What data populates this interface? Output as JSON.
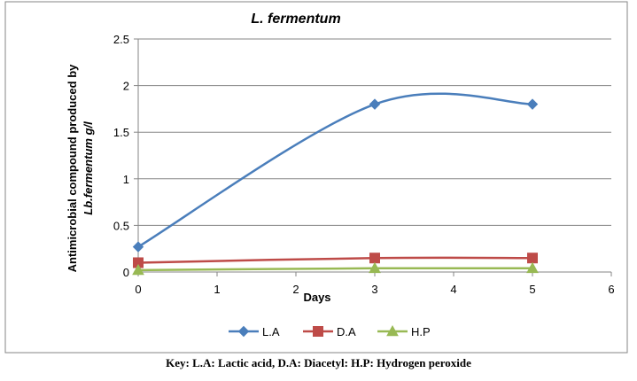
{
  "chart_data": {
    "type": "line",
    "title": "L. fermentum",
    "xlabel": "Days",
    "ylabel_line1": "Antimicrobial compound produced by",
    "ylabel_line2": "Lb.fermentum g/l",
    "xlim": [
      0,
      6
    ],
    "ylim": [
      0,
      2.5
    ],
    "x_ticks": [
      "0",
      "1",
      "2",
      "3",
      "4",
      "5",
      "6"
    ],
    "y_ticks": [
      "0",
      "0.5",
      "1",
      "1.5",
      "2",
      "2.5"
    ],
    "grid": "horizontal",
    "legend_position": "bottom",
    "series": [
      {
        "name": "L.A",
        "color": "#4a7ebb",
        "marker": "diamond",
        "x": [
          0,
          3,
          5
        ],
        "y": [
          0.27,
          1.8,
          1.8
        ]
      },
      {
        "name": "D.A",
        "color": "#be4b48",
        "marker": "square",
        "x": [
          0,
          3,
          5
        ],
        "y": [
          0.1,
          0.15,
          0.15
        ]
      },
      {
        "name": "H.P",
        "color": "#98b954",
        "marker": "triangle",
        "x": [
          0,
          3,
          5
        ],
        "y": [
          0.02,
          0.04,
          0.04
        ]
      }
    ]
  },
  "caption": "Key:    L.A: Lactic acid, D.A: Diacetyl: H.P: Hydrogen peroxide"
}
